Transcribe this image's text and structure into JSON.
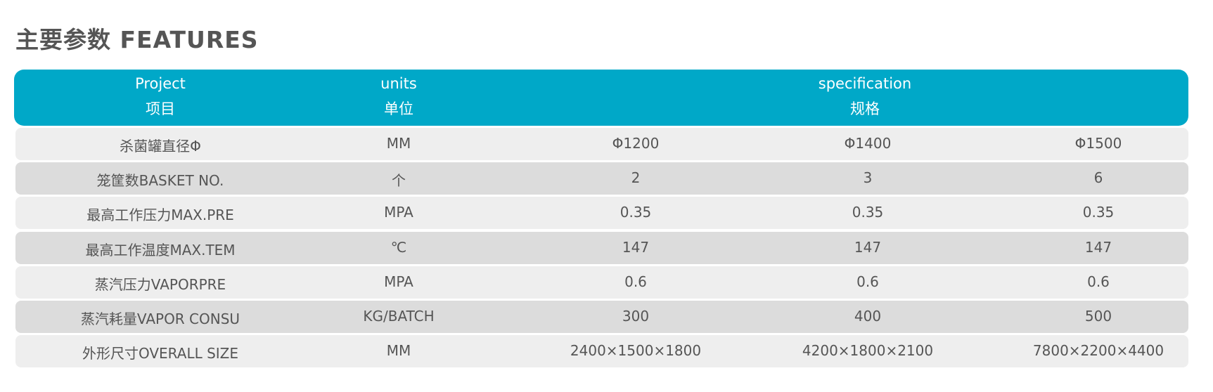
{
  "header": {
    "title": "主要参数 FEATURES"
  },
  "table": {
    "columns": [
      {
        "en": "Project",
        "zh": "项目"
      },
      {
        "en": "units",
        "zh": "单位"
      },
      {
        "en": "specification",
        "zh": "规格"
      }
    ],
    "rows": [
      [
        "杀菌罐直径Φ",
        "MM",
        "Φ1200",
        "Φ1400",
        "Φ1500"
      ],
      [
        "笼筐数BASKET NO.",
        "个",
        "2",
        "3",
        "6"
      ],
      [
        "最高工作压力MAX.PRE",
        "MPA",
        "0.35",
        "0.35",
        "0.35"
      ],
      [
        "最高工作温度MAX.TEM",
        "℃",
        "147",
        "147",
        "147"
      ],
      [
        "蒸汽压力VAPORPRE",
        "MPA",
        "0.6",
        "0.6",
        "0.6"
      ],
      [
        "蒸汽耗量VAPOR CONSU",
        "KG/BATCH",
        "300",
        "400",
        "500"
      ],
      [
        "外形尺寸OVERALL SIZE",
        "MM",
        "2400×1500×1800",
        "4200×1800×2100",
        "7800×2200×4400"
      ]
    ]
  }
}
